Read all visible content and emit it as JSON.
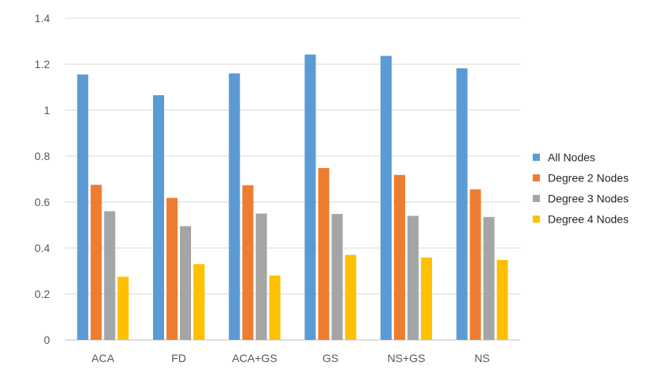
{
  "chart_data": {
    "type": "bar",
    "categories": [
      "ACA",
      "FD",
      "ACA+GS",
      "GS",
      "NS+GS",
      "NS"
    ],
    "series": [
      {
        "name": "All Nodes",
        "color": "#5B9BD5",
        "values": [
          1.155,
          1.065,
          1.16,
          1.242,
          1.236,
          1.182
        ]
      },
      {
        "name": "Degree 2 Nodes",
        "color": "#ED7D31",
        "values": [
          0.675,
          0.618,
          0.673,
          0.748,
          0.718,
          0.655
        ]
      },
      {
        "name": "Degree 3 Nodes",
        "color": "#A5A5A5",
        "values": [
          0.56,
          0.495,
          0.55,
          0.548,
          0.54,
          0.535
        ]
      },
      {
        "name": "Degree 4 Nodes",
        "color": "#FFC000",
        "values": [
          0.275,
          0.33,
          0.28,
          0.37,
          0.358,
          0.348
        ]
      }
    ],
    "yticks": [
      "0",
      "0.2",
      "0.4",
      "0.6",
      "0.8",
      "1",
      "1.2",
      "1.4"
    ],
    "ylim": [
      0,
      1.4
    ],
    "grid": true,
    "legend_position": "right"
  }
}
